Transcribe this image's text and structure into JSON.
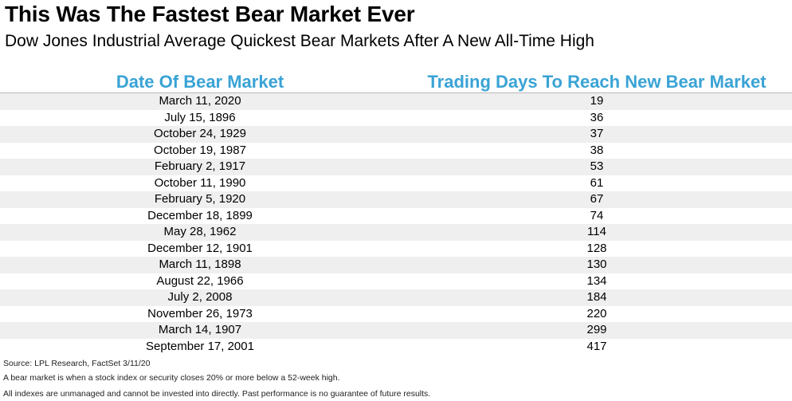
{
  "header": {
    "title": "This Was The Fastest Bear Market Ever",
    "subtitle": "Dow Jones Industrial Average Quickest Bear Markets After A New All-Time High"
  },
  "chart_data": {
    "type": "table",
    "columns": [
      "Date Of Bear Market",
      "Trading Days To Reach New Bear Market"
    ],
    "rows": [
      [
        "March 11, 2020",
        "19"
      ],
      [
        "July 15, 1896",
        "36"
      ],
      [
        "October 24, 1929",
        "37"
      ],
      [
        "October 19, 1987",
        "38"
      ],
      [
        "February 2, 1917",
        "53"
      ],
      [
        "October 11, 1990",
        "61"
      ],
      [
        "February 5, 1920",
        "67"
      ],
      [
        "December 18, 1899",
        "74"
      ],
      [
        "May 28, 1962",
        "114"
      ],
      [
        "December 12, 1901",
        "128"
      ],
      [
        "March 11, 1898",
        "130"
      ],
      [
        "August 22, 1966",
        "134"
      ],
      [
        "July 2, 2008",
        "184"
      ],
      [
        "November 26, 1973",
        "220"
      ],
      [
        "March 14, 1907",
        "299"
      ],
      [
        "September 17, 2001",
        "417"
      ]
    ]
  },
  "footnotes": {
    "source": "Source: LPL Research, FactSet 3/11/20",
    "definition": "A bear market is when a stock index or security closes 20% or more below a 52-week high.",
    "disclaimer": "All indexes are unmanaged and cannot be invested into directly. Past performance is no guarantee of future results."
  },
  "colors": {
    "header_text": "#3aa3d5",
    "stripe": "#efefef"
  }
}
